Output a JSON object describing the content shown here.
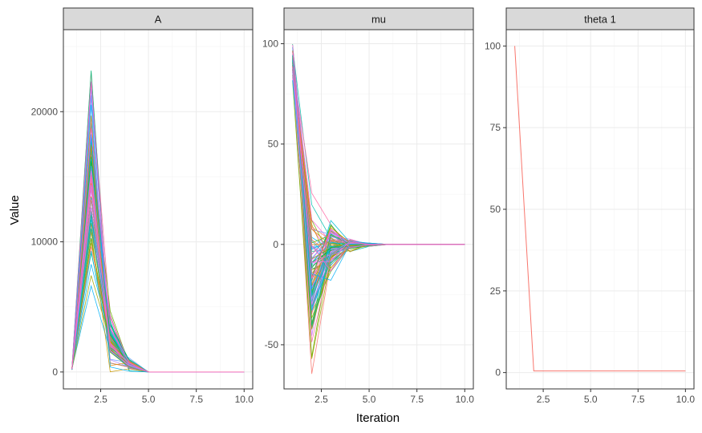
{
  "chart_data": {
    "type": "line",
    "xlabel": "Iteration",
    "ylabel": "Value",
    "series_colors": [
      "#F8766D",
      "#E58700",
      "#C99800",
      "#A3A500",
      "#6BB100",
      "#00BA38",
      "#00BF7D",
      "#00C0AF",
      "#00BCD8",
      "#00B0F6",
      "#619CFF",
      "#B983FF",
      "#E76BF3",
      "#FD61D1",
      "#FF67A4"
    ],
    "facets": [
      {
        "name": "A",
        "xlim": [
          0.55,
          10.45
        ],
        "ylim": [
          -1300,
          26300
        ],
        "xticks": [
          2.5,
          5.0,
          7.5,
          10.0
        ],
        "xtick_labels": [
          "2.5",
          "5.0",
          "7.5",
          "10.0"
        ],
        "yticks": [
          0,
          10000,
          20000
        ],
        "ytick_labels": [
          "0",
          "10000",
          "20000"
        ],
        "x": [
          1,
          2,
          3,
          4,
          5,
          6,
          7,
          8,
          9,
          10
        ],
        "series_ranges": {
          "iter1": [
            150,
            300
          ],
          "iter2": [
            4600,
            25500
          ],
          "iter3": [
            0,
            5000
          ],
          "iter4": [
            0,
            1100
          ],
          "rest": [
            0,
            0
          ]
        }
      },
      {
        "name": "mu",
        "xlim": [
          0.55,
          10.45
        ],
        "ylim": [
          -72,
          107
        ],
        "xticks": [
          2.5,
          5.0,
          7.5,
          10.0
        ],
        "xtick_labels": [
          "2.5",
          "5.0",
          "7.5",
          "10.0"
        ],
        "yticks": [
          -50,
          0,
          50,
          100
        ],
        "ytick_labels": [
          "-50",
          "0",
          "50",
          "100"
        ],
        "x": [
          1,
          2,
          3,
          4,
          5,
          6,
          7,
          8,
          9,
          10
        ],
        "series_ranges": {
          "iter1": [
            80,
            100
          ],
          "iter2": [
            -65,
            31
          ],
          "iter3": [
            -18,
            15
          ],
          "iter4": [
            -4,
            4
          ],
          "iter5": [
            -1,
            1
          ],
          "rest": [
            0,
            0
          ]
        }
      },
      {
        "name": "theta 1",
        "xlim": [
          0.55,
          10.45
        ],
        "ylim": [
          -5,
          105
        ],
        "xticks": [
          2.5,
          5.0,
          7.5,
          10.0
        ],
        "xtick_labels": [
          "2.5",
          "5.0",
          "7.5",
          "10.0"
        ],
        "yticks": [
          0,
          25,
          50,
          75,
          100
        ],
        "ytick_labels": [
          "0",
          "25",
          "50",
          "75",
          "100"
        ],
        "x": [
          1,
          2,
          3,
          4,
          5,
          6,
          7,
          8,
          9,
          10
        ],
        "values": [
          100,
          0.5,
          0.5,
          0.5,
          0.5,
          0.5,
          0.5,
          0.5,
          0.5,
          0.5
        ]
      }
    ]
  }
}
